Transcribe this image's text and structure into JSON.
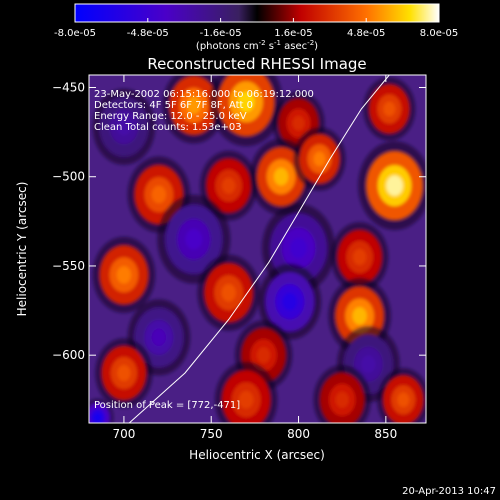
{
  "chart_data": {
    "type": "heatmap",
    "title": "Reconstructed RHESSI Image",
    "xlabel": "Heliocentric X (arcsec)",
    "ylabel": "Heliocentric Y (arcsec)",
    "xlim": [
      680,
      873
    ],
    "ylim": [
      -638,
      -443
    ],
    "xticks": [
      700,
      750,
      800,
      850
    ],
    "yticks": [
      -450,
      -500,
      -550,
      -600
    ],
    "colorbar": {
      "range": [
        -8e-05,
        8e-05
      ],
      "tick_labels": [
        "-8.0e-05",
        "-4.8e-05",
        "-1.6e-05",
        "1.6e-05",
        "4.8e-05",
        "8.0e-05"
      ],
      "unit_main": "(photons cm",
      "unit_sup1": "-2",
      "unit_mid": " s",
      "unit_sup2": "-1",
      "unit_end": " asec",
      "unit_sup3": "-2",
      "unit_close": ")"
    },
    "annotations": [
      "23-May-2002 06:15:16.000 to 06:19:12.000",
      "Detectors: 4F 5F 6F 7F 8F, Att 0",
      "Energy Range: 12.0 - 25.0 keV",
      "Clean     Total counts: 1.53e+03"
    ],
    "peak_label": "Position of Peak = [772,-471]",
    "peak": [
      772,
      -471
    ],
    "limb_curve": [
      [
        703,
        -638
      ],
      [
        735,
        -610
      ],
      [
        760,
        -580
      ],
      [
        783,
        -548
      ],
      [
        800,
        -520
      ],
      [
        818,
        -490
      ],
      [
        836,
        -462
      ],
      [
        852,
        -443
      ]
    ],
    "blobs": [
      {
        "x": 740,
        "y": -460,
        "v": 5.5e-05,
        "s": 12
      },
      {
        "x": 770,
        "y": -458,
        "v": 6.5e-05,
        "s": 14
      },
      {
        "x": 800,
        "y": -470,
        "v": 3e-05,
        "s": 10
      },
      {
        "x": 852,
        "y": -462,
        "v": 4e-05,
        "s": 10
      },
      {
        "x": 700,
        "y": -472,
        "v": -3e-05,
        "s": 12
      },
      {
        "x": 720,
        "y": -510,
        "v": 4.5e-05,
        "s": 12
      },
      {
        "x": 760,
        "y": -505,
        "v": 3.5e-05,
        "s": 11
      },
      {
        "x": 790,
        "y": -500,
        "v": 6e-05,
        "s": 12
      },
      {
        "x": 812,
        "y": -490,
        "v": 5e-05,
        "s": 10
      },
      {
        "x": 855,
        "y": -505,
        "v": 7.5e-05,
        "s": 14
      },
      {
        "x": 740,
        "y": -535,
        "v": -4e-05,
        "s": 14
      },
      {
        "x": 800,
        "y": -540,
        "v": -4.5e-05,
        "s": 14
      },
      {
        "x": 835,
        "y": -545,
        "v": 3.5e-05,
        "s": 11
      },
      {
        "x": 700,
        "y": -555,
        "v": 5e-05,
        "s": 12
      },
      {
        "x": 760,
        "y": -565,
        "v": 4e-05,
        "s": 12
      },
      {
        "x": 795,
        "y": -570,
        "v": -6e-05,
        "s": 12
      },
      {
        "x": 835,
        "y": -578,
        "v": 6e-05,
        "s": 12
      },
      {
        "x": 720,
        "y": -590,
        "v": -3.5e-05,
        "s": 12
      },
      {
        "x": 780,
        "y": -600,
        "v": 3e-05,
        "s": 11
      },
      {
        "x": 840,
        "y": -605,
        "v": -3e-05,
        "s": 12
      },
      {
        "x": 700,
        "y": -610,
        "v": 4e-05,
        "s": 11
      },
      {
        "x": 770,
        "y": -625,
        "v": 3.5e-05,
        "s": 12
      },
      {
        "x": 825,
        "y": -625,
        "v": 3e-05,
        "s": 11
      },
      {
        "x": 860,
        "y": -625,
        "v": 4e-05,
        "s": 10
      },
      {
        "x": 685,
        "y": -635,
        "v": -7e-05,
        "s": 6
      }
    ]
  },
  "footer": {
    "date": "20-Apr-2013 10:47"
  }
}
